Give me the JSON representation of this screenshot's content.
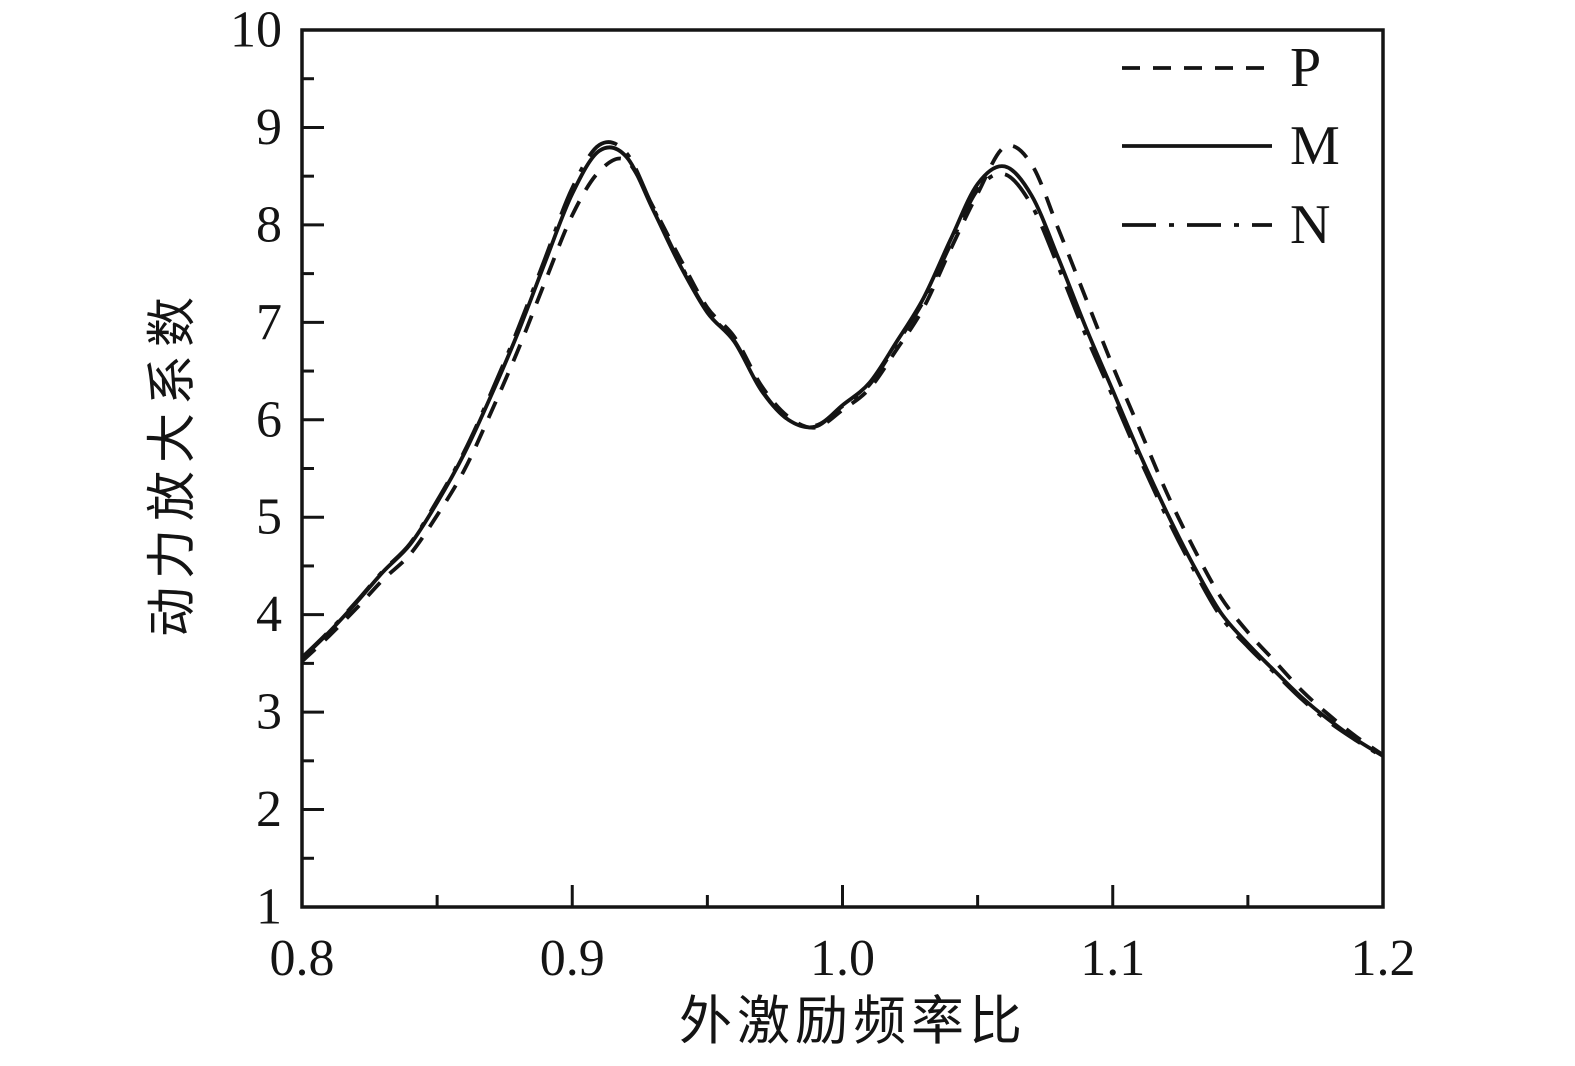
{
  "figure": {
    "background": "#ffffff",
    "ink_color": "#141414"
  },
  "chart_data": {
    "type": "line",
    "title": "",
    "xlabel": "外激励频率比",
    "ylabel": "动力放大系数",
    "xlim": [
      0.8,
      1.2
    ],
    "ylim": [
      1,
      10
    ],
    "grid": false,
    "legend_position": "upper-right-inside",
    "xticks_major": [
      0.8,
      0.9,
      1.0,
      1.1,
      1.2
    ],
    "xtick_labels": [
      "0.8",
      "0.9",
      "1.0",
      "1.1",
      "1.2"
    ],
    "xticks_minor": [
      0.85,
      0.95,
      1.05,
      1.15
    ],
    "yticks_major": [
      1,
      2,
      3,
      4,
      5,
      6,
      7,
      8,
      9,
      10
    ],
    "ytick_labels": [
      "1",
      "2",
      "3",
      "4",
      "5",
      "6",
      "7",
      "8",
      "9",
      "10"
    ],
    "yticks_minor": [
      1.5,
      2.5,
      3.5,
      4.5,
      5.5,
      6.5,
      7.5,
      8.5,
      9.5
    ],
    "x": [
      0.8,
      0.81,
      0.82,
      0.83,
      0.84,
      0.85,
      0.86,
      0.87,
      0.88,
      0.89,
      0.9,
      0.91,
      0.92,
      0.93,
      0.94,
      0.95,
      0.96,
      0.97,
      0.98,
      0.99,
      1.0,
      1.01,
      1.02,
      1.03,
      1.04,
      1.05,
      1.06,
      1.07,
      1.08,
      1.09,
      1.1,
      1.11,
      1.12,
      1.13,
      1.14,
      1.15,
      1.16,
      1.17,
      1.18,
      1.19,
      1.2
    ],
    "series": [
      {
        "name": "P",
        "style": "dashed",
        "dash": [
          18,
          13
        ],
        "color": "#141414",
        "values": [
          3.52,
          3.78,
          4.06,
          4.36,
          4.62,
          5.02,
          5.48,
          6.08,
          6.72,
          7.42,
          8.1,
          8.55,
          8.66,
          8.18,
          7.65,
          7.15,
          6.85,
          6.35,
          6.03,
          5.92,
          6.1,
          6.32,
          6.72,
          7.15,
          7.75,
          8.32,
          8.8,
          8.62,
          7.95,
          7.25,
          6.55,
          5.9,
          5.25,
          4.68,
          4.18,
          3.82,
          3.52,
          3.22,
          2.97,
          2.75,
          2.56
        ]
      },
      {
        "name": "M",
        "style": "solid",
        "dash": [],
        "color": "#141414",
        "values": [
          3.55,
          3.82,
          4.12,
          4.44,
          4.72,
          5.15,
          5.65,
          6.25,
          6.9,
          7.62,
          8.32,
          8.76,
          8.7,
          8.15,
          7.58,
          7.1,
          6.8,
          6.3,
          6.0,
          5.93,
          6.15,
          6.38,
          6.8,
          7.25,
          7.85,
          8.42,
          8.6,
          8.3,
          7.65,
          6.95,
          6.3,
          5.65,
          5.05,
          4.5,
          4.02,
          3.7,
          3.42,
          3.15,
          2.92,
          2.72,
          2.55
        ]
      },
      {
        "name": "N",
        "style": "dashdot",
        "dash": [
          34,
          13,
          5,
          13
        ],
        "color": "#141414",
        "values": [
          3.56,
          3.83,
          4.13,
          4.45,
          4.73,
          5.17,
          5.67,
          6.28,
          6.94,
          7.66,
          8.38,
          8.82,
          8.74,
          8.17,
          7.6,
          7.11,
          6.81,
          6.31,
          6.0,
          5.94,
          6.14,
          6.36,
          6.78,
          7.22,
          7.8,
          8.36,
          8.52,
          8.2,
          7.56,
          6.87,
          6.24,
          5.6,
          5.0,
          4.46,
          3.98,
          3.67,
          3.4,
          3.13,
          2.9,
          2.71,
          2.54
        ]
      }
    ]
  }
}
